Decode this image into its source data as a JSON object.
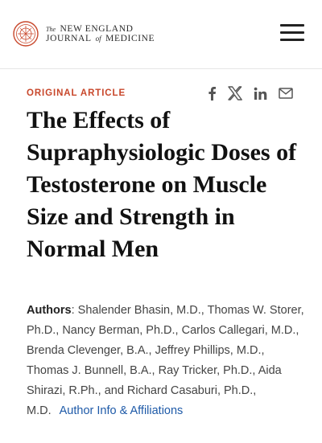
{
  "header": {
    "masthead": {
      "the": "The",
      "line1_rest": "NEW ENGLAND",
      "line2_a": "JOURNAL",
      "of": "of",
      "line2_b": "MEDICINE"
    },
    "menu_icon": "hamburger-menu-icon"
  },
  "article": {
    "type_label": "ORIGINAL ARTICLE",
    "title": "The Effects of Supraphysiologic Doses of Testosterone on Muscle Size and Strength in Normal Men",
    "authors_label": "Authors",
    "authors_text": ": Shalender Bhasin, M.D., Thomas W. Storer, Ph.D., Nancy Berman, Ph.D., Carlos Callegari, M.D., Brenda Clevenger, B.A., Jeffrey Phillips, M.D., Thomas J. Bunnell, B.A., Ray Tricker, Ph.D., Aida Shirazi, R.Ph., and Richard Casaburi, Ph.D., M.D.",
    "affiliations_link": "Author Info & Affiliations"
  },
  "share": {
    "icons": [
      "facebook-icon",
      "x-icon",
      "linkedin-icon",
      "email-icon"
    ]
  },
  "colors": {
    "accent": "#c8472b",
    "link": "#1e5aa8",
    "text": "#111111"
  }
}
